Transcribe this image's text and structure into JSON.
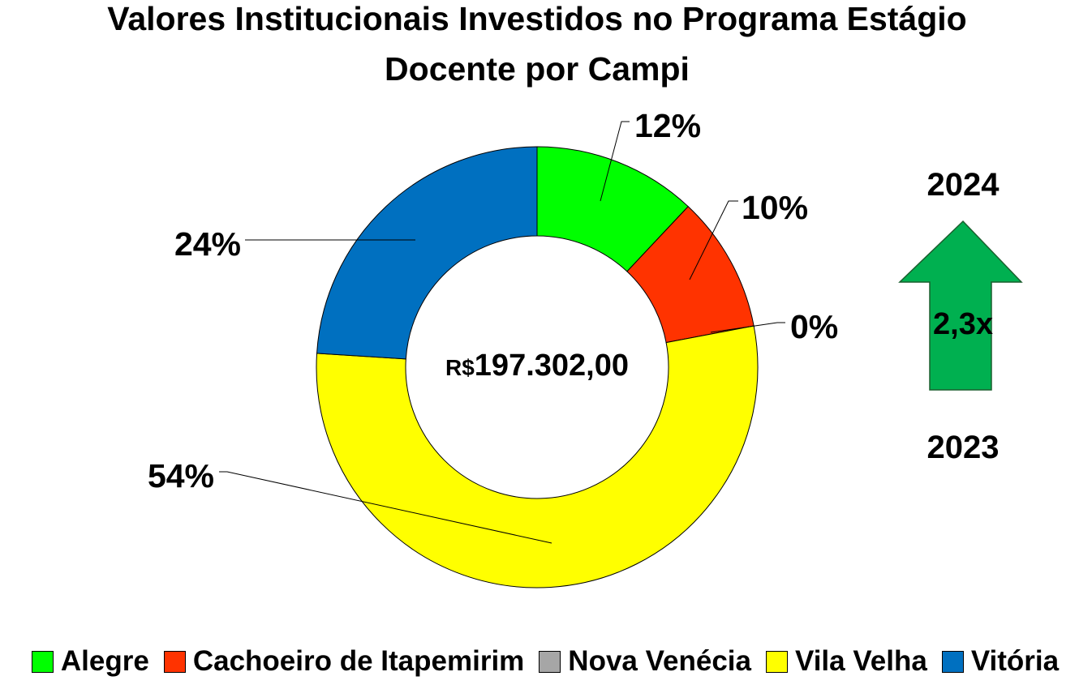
{
  "chart_data": {
    "type": "donut",
    "title_lines": [
      "Valores Institucionais Investidos no Programa Estágio",
      "Docente por Campi"
    ],
    "categories": [
      "Alegre",
      "Cachoeiro de Itapemirim",
      "Nova Venécia",
      "Vila Velha",
      "Vitória"
    ],
    "values": [
      12,
      10,
      0,
      54,
      24
    ],
    "data_labels": [
      "12%",
      "10%",
      "0%",
      "54%",
      "24%"
    ],
    "colors": [
      "#00ff00",
      "#ff3300",
      "#a6a6a6",
      "#ffff00",
      "#0070c0"
    ],
    "center_label": {
      "prefix": "R$",
      "value": "197.302,00"
    },
    "legend_position": "bottom"
  },
  "annotation": {
    "top_year": "2024",
    "bottom_year": "2023",
    "multiplier": "2,3x",
    "arrow_color": "#00b050",
    "arrow_icon": "up-arrow-icon"
  }
}
